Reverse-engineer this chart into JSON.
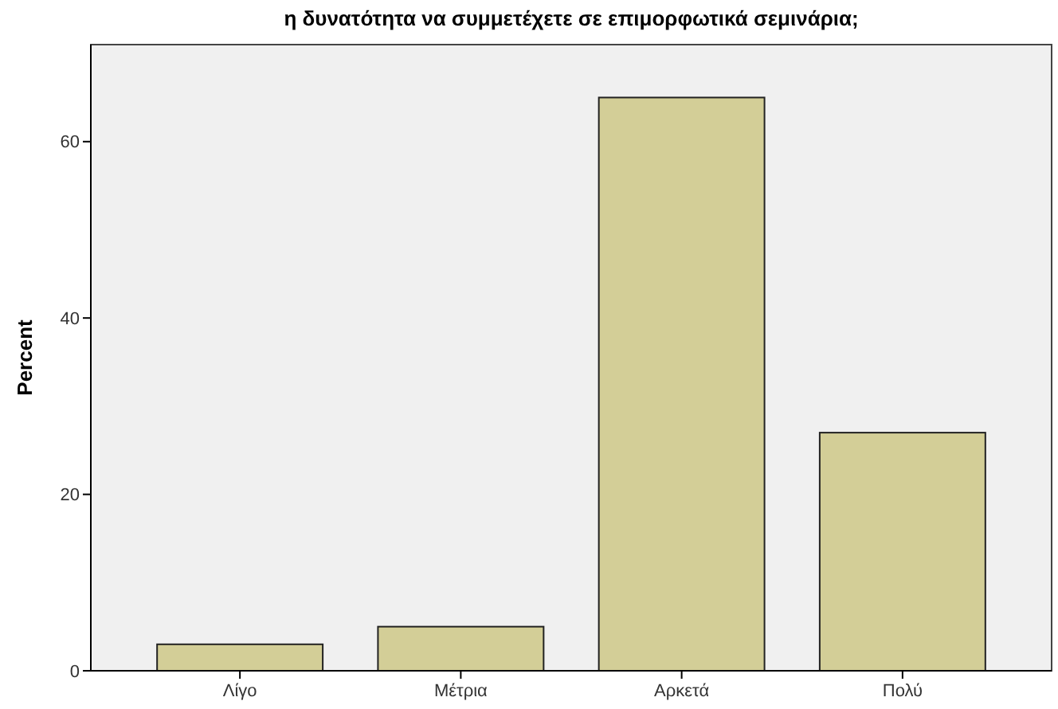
{
  "chart_data": {
    "type": "bar",
    "title": "η δυνατότητα να συμμετέχετε σε επιμορφωτικά σεμινάρια;",
    "ylabel": "Percent",
    "categories": [
      "Λίγο",
      "Μέτρια",
      "Αρκετά",
      "Πολύ"
    ],
    "values": [
      3,
      5,
      65,
      27
    ],
    "color": "#d3ce97",
    "ylim": [
      0,
      71
    ],
    "yticks": [
      0,
      20,
      40,
      60
    ],
    "grid": false
  }
}
